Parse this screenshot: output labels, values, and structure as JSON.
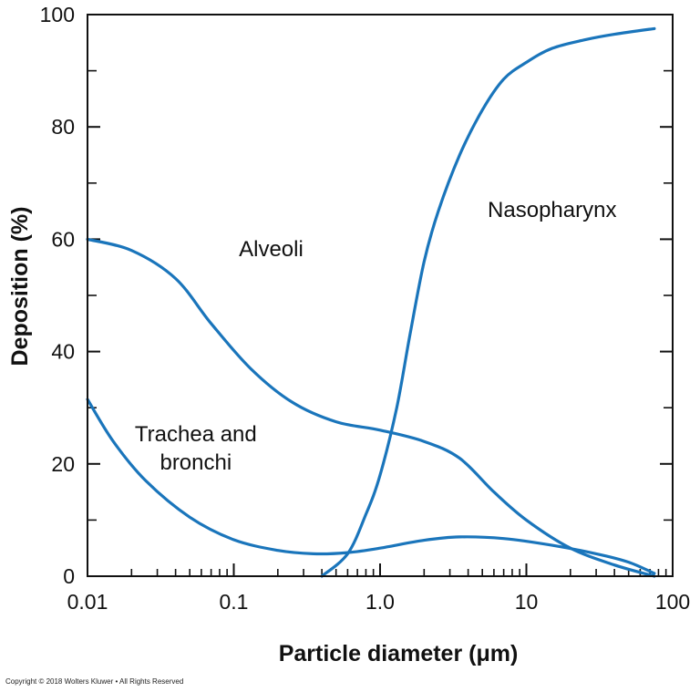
{
  "chart_data": {
    "type": "line",
    "x_scale": "log",
    "xlim": [
      0.01,
      100
    ],
    "ylim": [
      0,
      100
    ],
    "grid": false,
    "legend": "none",
    "xlabel": "Particle diameter (μm)",
    "ylabel": "Deposition (%)",
    "x_ticks": [
      {
        "value": 0.01,
        "label": "0.01"
      },
      {
        "value": 0.1,
        "label": "0.1"
      },
      {
        "value": 1,
        "label": "1.0"
      },
      {
        "value": 10,
        "label": "10"
      },
      {
        "value": 100,
        "label": "100"
      }
    ],
    "y_ticks": [
      {
        "value": 0,
        "label": "0"
      },
      {
        "value": 20,
        "label": "20"
      },
      {
        "value": 40,
        "label": "40"
      },
      {
        "value": 60,
        "label": "60"
      },
      {
        "value": 80,
        "label": "80"
      },
      {
        "value": 100,
        "label": "100"
      }
    ],
    "line_color": "#1a75bb",
    "series": [
      {
        "name": "Alveoli",
        "x": [
          0.01,
          0.02,
          0.04,
          0.07,
          0.13,
          0.25,
          0.5,
          1.0,
          2.0,
          3.5,
          6,
          10,
          20,
          40,
          75
        ],
        "y": [
          60,
          58,
          53,
          45,
          37,
          31,
          27.5,
          26,
          24,
          21,
          15,
          10,
          5,
          2,
          0
        ]
      },
      {
        "name": "Trachea and bronchi",
        "x": [
          0.01,
          0.015,
          0.025,
          0.05,
          0.1,
          0.2,
          0.35,
          0.6,
          1.0,
          2.0,
          3.5,
          7,
          15,
          30,
          50,
          75
        ],
        "y": [
          31.5,
          24,
          17,
          10.5,
          6.5,
          4.6,
          4,
          4.2,
          5,
          6.4,
          7,
          6.7,
          5.5,
          4,
          2.5,
          0.5
        ]
      },
      {
        "name": "Nasopharynx",
        "x": [
          0.4,
          0.6,
          0.8,
          1.0,
          1.3,
          1.6,
          2.0,
          2.5,
          3.5,
          5,
          7,
          10,
          15,
          25,
          40,
          75
        ],
        "y": [
          0,
          4,
          11,
          18,
          30,
          43,
          56,
          65,
          75,
          83,
          88.5,
          91.5,
          94,
          95.5,
          96.5,
          97.5
        ]
      }
    ],
    "annotations": [
      {
        "text": "Nasopharynx",
        "x": 15,
        "y": 64
      },
      {
        "text": "Alveoli",
        "x": 0.18,
        "y": 57
      },
      {
        "text": "Trachea and",
        "x": 0.055,
        "y": 24
      },
      {
        "text": "bronchi",
        "x": 0.055,
        "y": 19
      }
    ]
  },
  "footer": {
    "copyright": "Copyright © 2018 Wolters Kluwer • All Rights Reserved"
  }
}
